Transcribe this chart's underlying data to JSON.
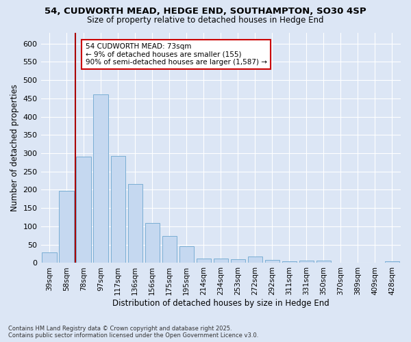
{
  "title_line1": "54, CUDWORTH MEAD, HEDGE END, SOUTHAMPTON, SO30 4SP",
  "title_line2": "Size of property relative to detached houses in Hedge End",
  "xlabel": "Distribution of detached houses by size in Hedge End",
  "ylabel": "Number of detached properties",
  "categories": [
    "39sqm",
    "58sqm",
    "78sqm",
    "97sqm",
    "117sqm",
    "136sqm",
    "156sqm",
    "175sqm",
    "195sqm",
    "214sqm",
    "234sqm",
    "253sqm",
    "272sqm",
    "292sqm",
    "311sqm",
    "331sqm",
    "350sqm",
    "370sqm",
    "389sqm",
    "409sqm",
    "428sqm"
  ],
  "values": [
    28,
    197,
    290,
    460,
    293,
    215,
    110,
    74,
    45,
    12,
    12,
    10,
    18,
    9,
    5,
    6,
    6,
    0,
    0,
    0,
    4
  ],
  "bar_color": "#c5d8f0",
  "bar_edge_color": "#7aaed4",
  "vline_color": "#aa0000",
  "annotation_text": "54 CUDWORTH MEAD: 73sqm\n← 9% of detached houses are smaller (155)\n90% of semi-detached houses are larger (1,587) →",
  "annotation_box_color": "#ffffff",
  "annotation_box_edge": "#cc0000",
  "bg_color": "#dce6f5",
  "grid_color": "#ffffff",
  "footer_text": "Contains HM Land Registry data © Crown copyright and database right 2025.\nContains public sector information licensed under the Open Government Licence v3.0.",
  "ylim": [
    0,
    630
  ],
  "yticks": [
    0,
    50,
    100,
    150,
    200,
    250,
    300,
    350,
    400,
    450,
    500,
    550,
    600
  ],
  "vline_pos": 1.5
}
